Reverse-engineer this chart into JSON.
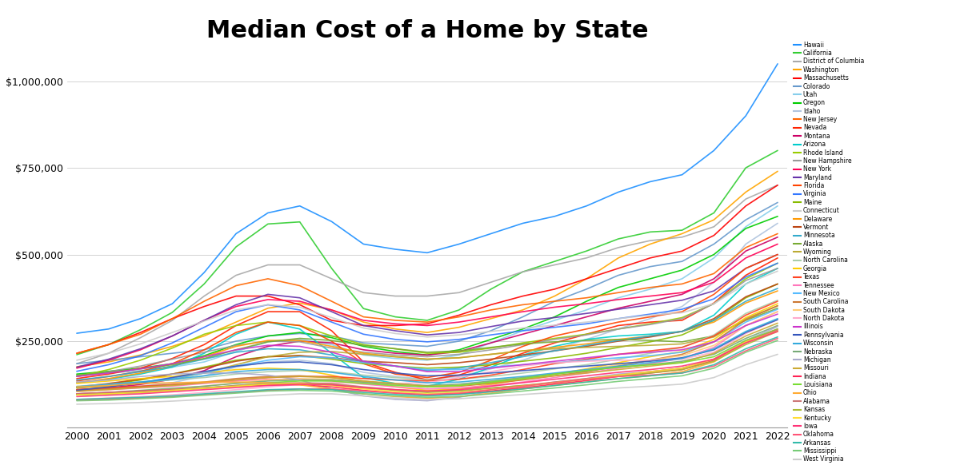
{
  "title": "Median Cost of a Home by State",
  "title_fontsize": 22,
  "title_fontweight": "bold",
  "years": [
    2000,
    2001,
    2002,
    2003,
    2004,
    2005,
    2006,
    2007,
    2008,
    2009,
    2010,
    2011,
    2012,
    2013,
    2014,
    2015,
    2016,
    2017,
    2018,
    2019,
    2020,
    2021,
    2022
  ],
  "states": {
    "Hawaii": [
      272700,
      285000,
      315000,
      358000,
      448000,
      560000,
      620000,
      640000,
      595000,
      530000,
      515000,
      505000,
      530000,
      560000,
      590000,
      610000,
      640000,
      680000,
      710000,
      730000,
      800000,
      900000,
      1050000
    ],
    "California": [
      211000,
      240000,
      283000,
      333000,
      415000,
      522000,
      588000,
      594000,
      460000,
      344000,
      320000,
      310000,
      340000,
      400000,
      450000,
      480000,
      510000,
      545000,
      565000,
      570000,
      620000,
      750000,
      800000
    ],
    "District of Columbia": [
      185000,
      215000,
      260000,
      310000,
      380000,
      440000,
      470000,
      470000,
      430000,
      390000,
      380000,
      380000,
      390000,
      420000,
      450000,
      470000,
      490000,
      520000,
      540000,
      550000,
      580000,
      660000,
      700000
    ],
    "Washington": [
      176000,
      190000,
      210000,
      235000,
      265000,
      305000,
      345000,
      360000,
      340000,
      305000,
      285000,
      275000,
      290000,
      315000,
      340000,
      380000,
      430000,
      490000,
      530000,
      560000,
      600000,
      680000,
      740000
    ],
    "Massachusetts": [
      215000,
      240000,
      275000,
      315000,
      350000,
      380000,
      380000,
      355000,
      310000,
      295000,
      295000,
      300000,
      325000,
      355000,
      380000,
      400000,
      430000,
      460000,
      490000,
      510000,
      555000,
      640000,
      700000
    ],
    "Colorado": [
      185000,
      195000,
      205000,
      215000,
      225000,
      250000,
      265000,
      272000,
      265000,
      245000,
      240000,
      235000,
      250000,
      280000,
      320000,
      365000,
      400000,
      440000,
      465000,
      480000,
      530000,
      600000,
      650000
    ],
    "Utah": [
      150000,
      158000,
      165000,
      175000,
      190000,
      220000,
      248000,
      255000,
      240000,
      210000,
      200000,
      195000,
      210000,
      245000,
      280000,
      310000,
      340000,
      375000,
      400000,
      430000,
      490000,
      580000,
      640000
    ],
    "Oregon": [
      155000,
      163000,
      172000,
      185000,
      208000,
      240000,
      265000,
      275000,
      260000,
      235000,
      220000,
      210000,
      225000,
      255000,
      285000,
      320000,
      365000,
      405000,
      430000,
      455000,
      500000,
      575000,
      610000
    ],
    "Idaho": [
      110000,
      115000,
      120000,
      130000,
      150000,
      175000,
      190000,
      195000,
      185000,
      160000,
      148000,
      140000,
      148000,
      170000,
      195000,
      225000,
      255000,
      285000,
      315000,
      350000,
      420000,
      530000,
      590000
    ],
    "New Jersey": [
      215000,
      240000,
      270000,
      315000,
      365000,
      410000,
      430000,
      410000,
      365000,
      320000,
      310000,
      305000,
      320000,
      340000,
      355000,
      365000,
      375000,
      390000,
      405000,
      415000,
      445000,
      520000,
      560000
    ],
    "Nevada": [
      142000,
      155000,
      172000,
      200000,
      240000,
      295000,
      335000,
      335000,
      280000,
      190000,
      160000,
      138000,
      152000,
      182000,
      215000,
      245000,
      270000,
      295000,
      305000,
      310000,
      360000,
      440000,
      490000
    ],
    "Montana": [
      110000,
      115000,
      125000,
      140000,
      165000,
      205000,
      235000,
      250000,
      245000,
      225000,
      215000,
      210000,
      220000,
      245000,
      270000,
      295000,
      320000,
      345000,
      365000,
      385000,
      430000,
      510000,
      550000
    ],
    "Arizona": [
      130000,
      140000,
      155000,
      175000,
      215000,
      270000,
      305000,
      285000,
      215000,
      145000,
      128000,
      120000,
      140000,
      175000,
      210000,
      235000,
      255000,
      265000,
      270000,
      278000,
      325000,
      415000,
      460000
    ],
    "Rhode Island": [
      148000,
      168000,
      195000,
      230000,
      270000,
      295000,
      305000,
      295000,
      265000,
      240000,
      228000,
      215000,
      218000,
      230000,
      245000,
      258000,
      270000,
      285000,
      300000,
      318000,
      358000,
      430000,
      475000
    ],
    "New Hampshire": [
      148000,
      162000,
      178000,
      198000,
      218000,
      238000,
      250000,
      248000,
      230000,
      218000,
      210000,
      205000,
      212000,
      225000,
      240000,
      255000,
      268000,
      285000,
      298000,
      315000,
      358000,
      425000,
      460000
    ],
    "New York": [
      172000,
      195000,
      225000,
      265000,
      310000,
      350000,
      370000,
      365000,
      340000,
      310000,
      300000,
      295000,
      305000,
      320000,
      335000,
      348000,
      358000,
      370000,
      380000,
      390000,
      420000,
      490000,
      530000
    ],
    "Maryland": [
      175000,
      198000,
      228000,
      265000,
      310000,
      355000,
      385000,
      375000,
      335000,
      295000,
      280000,
      268000,
      275000,
      292000,
      308000,
      318000,
      330000,
      342000,
      355000,
      368000,
      395000,
      460000,
      500000
    ],
    "Florida": [
      135000,
      148000,
      163000,
      185000,
      225000,
      275000,
      305000,
      295000,
      250000,
      185000,
      155000,
      145000,
      160000,
      195000,
      235000,
      265000,
      285000,
      305000,
      320000,
      335000,
      385000,
      460000,
      500000
    ],
    "Virginia": [
      163000,
      182000,
      208000,
      245000,
      290000,
      335000,
      355000,
      340000,
      305000,
      270000,
      255000,
      248000,
      255000,
      268000,
      280000,
      290000,
      300000,
      315000,
      328000,
      342000,
      372000,
      435000,
      475000
    ],
    "Maine": [
      115000,
      125000,
      138000,
      155000,
      175000,
      195000,
      205000,
      208000,
      198000,
      185000,
      178000,
      172000,
      175000,
      182000,
      192000,
      202000,
      215000,
      232000,
      248000,
      268000,
      310000,
      375000,
      415000
    ],
    "Connecticut": [
      195000,
      215000,
      242000,
      275000,
      308000,
      340000,
      355000,
      348000,
      318000,
      288000,
      272000,
      262000,
      268000,
      278000,
      288000,
      296000,
      305000,
      315000,
      325000,
      332000,
      358000,
      415000,
      452000
    ],
    "Delaware": [
      130000,
      142000,
      158000,
      178000,
      205000,
      235000,
      252000,
      252000,
      235000,
      215000,
      205000,
      198000,
      202000,
      212000,
      222000,
      232000,
      242000,
      255000,
      265000,
      278000,
      305000,
      360000,
      395000
    ],
    "Vermont": [
      118000,
      128000,
      140000,
      155000,
      172000,
      192000,
      205000,
      208000,
      202000,
      192000,
      188000,
      182000,
      188000,
      198000,
      210000,
      222000,
      235000,
      250000,
      262000,
      278000,
      315000,
      378000,
      415000
    ],
    "Minnesota": [
      138000,
      148000,
      162000,
      178000,
      198000,
      218000,
      228000,
      225000,
      210000,
      192000,
      178000,
      165000,
      172000,
      188000,
      205000,
      222000,
      238000,
      252000,
      265000,
      278000,
      310000,
      365000,
      402000
    ],
    "Alaska": [
      152000,
      160000,
      170000,
      182000,
      200000,
      225000,
      248000,
      258000,
      252000,
      238000,
      228000,
      218000,
      222000,
      232000,
      242000,
      248000,
      252000,
      255000,
      252000,
      248000,
      265000,
      310000,
      345000
    ],
    "Wyoming": [
      115000,
      120000,
      128000,
      140000,
      158000,
      182000,
      205000,
      218000,
      220000,
      212000,
      205000,
      198000,
      202000,
      212000,
      222000,
      228000,
      232000,
      235000,
      238000,
      242000,
      262000,
      315000,
      352000
    ],
    "North Carolina": [
      120000,
      126000,
      132000,
      138000,
      145000,
      155000,
      162000,
      165000,
      162000,
      152000,
      145000,
      138000,
      140000,
      148000,
      158000,
      170000,
      182000,
      198000,
      215000,
      232000,
      268000,
      330000,
      368000
    ],
    "Georgia": [
      128000,
      135000,
      142000,
      148000,
      158000,
      168000,
      172000,
      168000,
      152000,
      132000,
      118000,
      108000,
      112000,
      125000,
      140000,
      155000,
      170000,
      188000,
      205000,
      220000,
      255000,
      318000,
      358000
    ],
    "Texas": [
      110000,
      115000,
      120000,
      125000,
      130000,
      138000,
      145000,
      148000,
      148000,
      142000,
      138000,
      135000,
      140000,
      152000,
      168000,
      185000,
      198000,
      212000,
      222000,
      232000,
      265000,
      325000,
      365000
    ],
    "Tennessee": [
      105000,
      110000,
      115000,
      120000,
      128000,
      135000,
      140000,
      140000,
      135000,
      126000,
      118000,
      112000,
      115000,
      122000,
      132000,
      145000,
      158000,
      172000,
      185000,
      200000,
      232000,
      295000,
      335000
    ],
    "New Mexico": [
      118000,
      125000,
      132000,
      142000,
      158000,
      178000,
      195000,
      205000,
      202000,
      188000,
      178000,
      168000,
      168000,
      175000,
      182000,
      188000,
      195000,
      202000,
      208000,
      218000,
      248000,
      305000,
      342000
    ],
    "South Carolina": [
      108000,
      112000,
      118000,
      124000,
      132000,
      142000,
      148000,
      150000,
      145000,
      135000,
      125000,
      118000,
      120000,
      128000,
      138000,
      150000,
      162000,
      178000,
      195000,
      212000,
      248000,
      312000,
      352000
    ],
    "South Dakota": [
      95000,
      100000,
      106000,
      112000,
      120000,
      130000,
      138000,
      142000,
      140000,
      132000,
      125000,
      118000,
      122000,
      132000,
      142000,
      155000,
      168000,
      182000,
      195000,
      208000,
      238000,
      295000,
      335000
    ],
    "North Dakota": [
      82000,
      86000,
      90000,
      95000,
      102000,
      110000,
      118000,
      125000,
      130000,
      130000,
      128000,
      130000,
      145000,
      162000,
      178000,
      188000,
      192000,
      195000,
      195000,
      198000,
      218000,
      272000,
      312000
    ],
    "Illinois": [
      148000,
      158000,
      170000,
      185000,
      205000,
      225000,
      238000,
      235000,
      218000,
      192000,
      178000,
      162000,
      162000,
      172000,
      182000,
      192000,
      202000,
      212000,
      218000,
      225000,
      248000,
      295000,
      328000
    ],
    "Pennsylvania": [
      108000,
      118000,
      130000,
      145000,
      162000,
      178000,
      188000,
      190000,
      182000,
      168000,
      158000,
      150000,
      152000,
      158000,
      165000,
      172000,
      178000,
      185000,
      192000,
      202000,
      225000,
      275000,
      312000
    ],
    "Wisconsin": [
      118000,
      125000,
      132000,
      140000,
      150000,
      162000,
      168000,
      168000,
      160000,
      148000,
      138000,
      130000,
      132000,
      140000,
      148000,
      158000,
      168000,
      178000,
      188000,
      200000,
      228000,
      278000,
      315000
    ],
    "Nebraska": [
      98000,
      102000,
      108000,
      114000,
      120000,
      128000,
      135000,
      138000,
      138000,
      132000,
      126000,
      122000,
      126000,
      135000,
      145000,
      155000,
      165000,
      175000,
      182000,
      192000,
      212000,
      258000,
      295000
    ],
    "Michigan": [
      132000,
      138000,
      148000,
      155000,
      158000,
      158000,
      152000,
      138000,
      112000,
      92000,
      82000,
      78000,
      88000,
      105000,
      118000,
      132000,
      142000,
      155000,
      162000,
      172000,
      198000,
      252000,
      292000
    ],
    "Missouri": [
      105000,
      110000,
      116000,
      122000,
      130000,
      138000,
      145000,
      148000,
      145000,
      135000,
      128000,
      120000,
      122000,
      130000,
      140000,
      150000,
      158000,
      168000,
      178000,
      188000,
      215000,
      265000,
      302000
    ],
    "Indiana": [
      98000,
      102000,
      106000,
      110000,
      115000,
      120000,
      124000,
      124000,
      118000,
      108000,
      100000,
      95000,
      98000,
      106000,
      115000,
      126000,
      136000,
      148000,
      158000,
      168000,
      195000,
      248000,
      285000
    ],
    "Louisiana": [
      95000,
      98000,
      102000,
      108000,
      115000,
      122000,
      130000,
      135000,
      135000,
      128000,
      122000,
      118000,
      122000,
      132000,
      142000,
      155000,
      165000,
      175000,
      182000,
      188000,
      205000,
      252000,
      285000
    ],
    "Ohio": [
      118000,
      122000,
      128000,
      130000,
      132000,
      132000,
      130000,
      124000,
      112000,
      98000,
      90000,
      85000,
      90000,
      100000,
      112000,
      122000,
      132000,
      142000,
      150000,
      162000,
      190000,
      245000,
      282000
    ],
    "Alabama": [
      98000,
      102000,
      106000,
      110000,
      115000,
      122000,
      128000,
      130000,
      128000,
      118000,
      110000,
      105000,
      108000,
      115000,
      122000,
      132000,
      142000,
      152000,
      162000,
      172000,
      198000,
      248000,
      282000
    ],
    "Kansas": [
      95000,
      98000,
      102000,
      108000,
      114000,
      120000,
      126000,
      128000,
      125000,
      115000,
      108000,
      102000,
      106000,
      114000,
      122000,
      130000,
      140000,
      150000,
      158000,
      168000,
      192000,
      240000,
      278000
    ],
    "Kentucky": [
      95000,
      98000,
      102000,
      108000,
      114000,
      120000,
      126000,
      128000,
      122000,
      112000,
      104000,
      98000,
      102000,
      110000,
      120000,
      130000,
      140000,
      152000,
      162000,
      172000,
      198000,
      248000,
      278000
    ],
    "Iowa": [
      90000,
      94000,
      98000,
      104000,
      110000,
      116000,
      122000,
      126000,
      124000,
      116000,
      110000,
      106000,
      110000,
      120000,
      130000,
      140000,
      150000,
      160000,
      168000,
      178000,
      198000,
      245000,
      278000
    ],
    "Oklahoma": [
      80000,
      82000,
      86000,
      90000,
      96000,
      102000,
      108000,
      112000,
      112000,
      106000,
      100000,
      96000,
      100000,
      110000,
      120000,
      130000,
      140000,
      148000,
      152000,
      158000,
      178000,
      222000,
      258000
    ],
    "Arkansas": [
      82000,
      85000,
      88000,
      92000,
      98000,
      104000,
      110000,
      112000,
      110000,
      102000,
      96000,
      92000,
      96000,
      104000,
      112000,
      122000,
      132000,
      142000,
      150000,
      158000,
      182000,
      228000,
      262000
    ],
    "Mississippi": [
      78000,
      80000,
      84000,
      88000,
      94000,
      100000,
      106000,
      108000,
      106000,
      98000,
      92000,
      88000,
      90000,
      98000,
      106000,
      115000,
      124000,
      134000,
      142000,
      150000,
      172000,
      218000,
      252000
    ],
    "West Virginia": [
      68000,
      70000,
      73000,
      77000,
      82000,
      88000,
      94000,
      98000,
      98000,
      92000,
      86000,
      82000,
      84000,
      90000,
      96000,
      102000,
      108000,
      115000,
      120000,
      126000,
      145000,
      182000,
      212000
    ]
  },
  "line_colors": {
    "Hawaii": "#1E90FF",
    "California": "#32CD32",
    "District of Columbia": "#A9A9A9",
    "Washington": "#FFA500",
    "Massachusetts": "#FF0000",
    "Colorado": "#6699CC",
    "Utah": "#87CEEB",
    "Oregon": "#00CC00",
    "Idaho": "#B0C4DE",
    "New Jersey": "#FF6600",
    "Nevada": "#FF2200",
    "Montana": "#CC0066",
    "Arizona": "#00CCCC",
    "Rhode Island": "#99CC00",
    "New Hampshire": "#999999",
    "New York": "#FF0055",
    "Maryland": "#6633AA",
    "Florida": "#FF4400",
    "Virginia": "#3377FF",
    "Maine": "#88BB00",
    "Connecticut": "#CCCCCC",
    "Delaware": "#FF9900",
    "Vermont": "#BB4411",
    "Minnesota": "#33AACC",
    "Alaska": "#77AA33",
    "Wyoming": "#BBAA33",
    "North Carolina": "#AACCAA",
    "Georgia": "#FFCC00",
    "Texas": "#FF4422",
    "Tennessee": "#FF77BB",
    "New Mexico": "#55BBFF",
    "South Carolina": "#CC7733",
    "South Dakota": "#FFCC77",
    "North Dakota": "#FFAACC",
    "Illinois": "#CC33CC",
    "Pennsylvania": "#3355BB",
    "Wisconsin": "#33AADD",
    "Nebraska": "#77AA77",
    "Michigan": "#AAAACC",
    "Missouri": "#CCAA33",
    "Indiana": "#FF2255",
    "Louisiana": "#77DD33",
    "Ohio": "#FFAA33",
    "Alabama": "#CC7777",
    "Kansas": "#AABB33",
    "Kentucky": "#FFDD33",
    "Iowa": "#FF3377",
    "Oklahoma": "#FF5577",
    "Arkansas": "#33BBAA",
    "Mississippi": "#77CC77",
    "West Virginia": "#CCCCCC"
  },
  "background_color": "#ffffff",
  "ylim": [
    0,
    1100000
  ],
  "xlim_min": 2000,
  "xlim_max": 2022,
  "tick_fontsize": 9,
  "legend_fontsize": 5.5,
  "linewidth": 1.2
}
